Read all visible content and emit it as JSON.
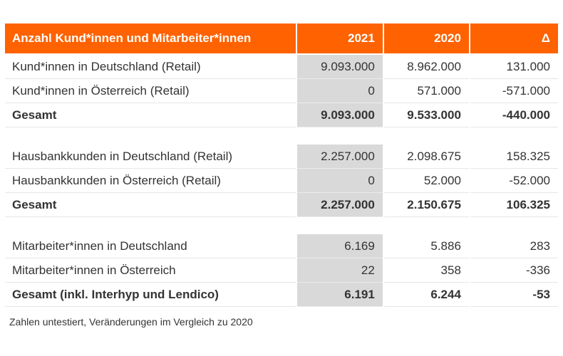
{
  "header": {
    "title": "Anzahl Kund*innen und Mitarbeiter*innen",
    "col1": "2021",
    "col2": "2020",
    "col3": "Δ"
  },
  "groups": [
    {
      "rows": [
        {
          "label": "Kund*innen in Deutschland (Retail)",
          "v2021": "9.093.000",
          "v2020": "8.962.000",
          "delta": "131.000"
        },
        {
          "label": "Kund*innen in Österreich (Retail)",
          "v2021": "0",
          "v2020": "571.000",
          "delta": "-571.000"
        },
        {
          "label": "Gesamt",
          "v2021": "9.093.000",
          "v2020": "9.533.000",
          "delta": "-440.000"
        }
      ]
    },
    {
      "rows": [
        {
          "label": "Hausbankkunden in Deutschland (Retail)",
          "v2021": "2.257.000",
          "v2020": "2.098.675",
          "delta": "158.325"
        },
        {
          "label": "Hausbankkunden in Österreich (Retail)",
          "v2021": "0",
          "v2020": "52.000",
          "delta": "-52.000"
        },
        {
          "label": "Gesamt",
          "v2021": "2.257.000",
          "v2020": "2.150.675",
          "delta": "106.325"
        }
      ]
    },
    {
      "rows": [
        {
          "label": "Mitarbeiter*innen in Deutschland",
          "v2021": "6.169",
          "v2020": "5.886",
          "delta": "283"
        },
        {
          "label": "Mitarbeiter*innen in Österreich",
          "v2021": "22",
          "v2020": "358",
          "delta": "-336"
        },
        {
          "label": "Gesamt (inkl. Interhyp und Lendico)",
          "v2021": "6.191",
          "v2020": "6.244",
          "delta": "-53"
        }
      ]
    }
  ],
  "footnote": "Zahlen untestiert, Veränderungen im Vergleich zu 2020",
  "colors": {
    "header_bg": "#ff6200",
    "header_text": "#ffffff",
    "highlight_col": "#d9d9d9"
  }
}
